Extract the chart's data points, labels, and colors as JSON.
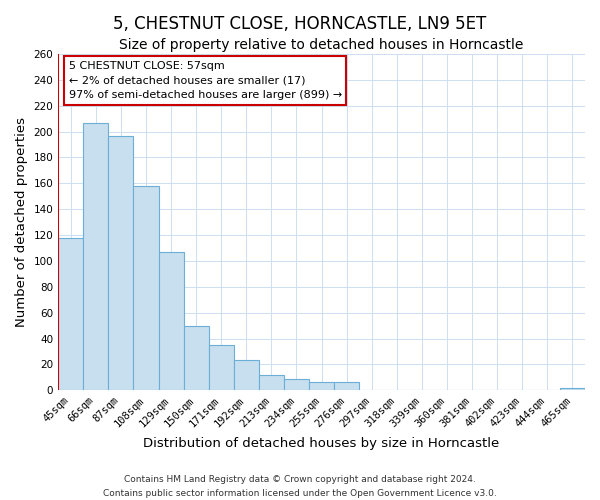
{
  "title": "5, CHESTNUT CLOSE, HORNCASTLE, LN9 5ET",
  "subtitle": "Size of property relative to detached houses in Horncastle",
  "xlabel": "Distribution of detached houses by size in Horncastle",
  "ylabel": "Number of detached properties",
  "bar_labels": [
    "45sqm",
    "66sqm",
    "87sqm",
    "108sqm",
    "129sqm",
    "150sqm",
    "171sqm",
    "192sqm",
    "213sqm",
    "234sqm",
    "255sqm",
    "276sqm",
    "297sqm",
    "318sqm",
    "339sqm",
    "360sqm",
    "381sqm",
    "402sqm",
    "423sqm",
    "444sqm",
    "465sqm"
  ],
  "bar_values": [
    118,
    207,
    197,
    158,
    107,
    50,
    35,
    23,
    12,
    9,
    6,
    6,
    0,
    0,
    0,
    0,
    0,
    0,
    0,
    0,
    2
  ],
  "bar_color": "#c8dff0",
  "bar_edge_color": "#6baed6",
  "annotation_box_title": "5 CHESTNUT CLOSE: 57sqm",
  "annotation_line1": "← 2% of detached houses are smaller (17)",
  "annotation_line2": "97% of semi-detached houses are larger (899) →",
  "annotation_box_color": "#ffffff",
  "annotation_box_edge_color": "#cc0000",
  "marker_line_color": "#cc0000",
  "ylim": [
    0,
    260
  ],
  "yticks": [
    0,
    20,
    40,
    60,
    80,
    100,
    120,
    140,
    160,
    180,
    200,
    220,
    240,
    260
  ],
  "footer_line1": "Contains HM Land Registry data © Crown copyright and database right 2024.",
  "footer_line2": "Contains public sector information licensed under the Open Government Licence v3.0.",
  "title_fontsize": 12,
  "subtitle_fontsize": 10,
  "axis_label_fontsize": 9.5,
  "tick_fontsize": 7.5,
  "annotation_fontsize": 8,
  "footer_fontsize": 6.5,
  "background_color": "#ffffff",
  "grid_color": "#ccdff0"
}
